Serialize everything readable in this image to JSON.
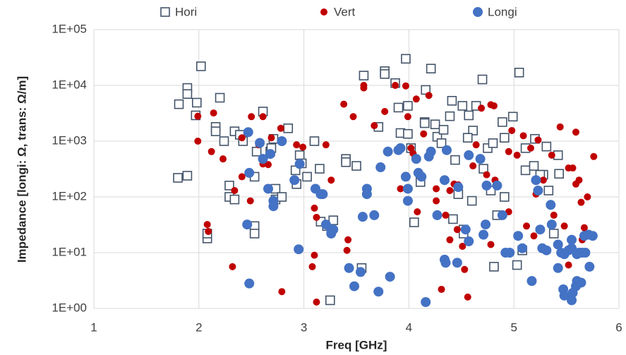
{
  "chart_data": {
    "type": "scatter",
    "xlabel": "Freq [GHz]",
    "ylabel": "Impedance [longi: Ω, trans: Ω/m]",
    "xlim": [
      1,
      6
    ],
    "xticks": [
      1,
      2,
      3,
      4,
      5,
      6
    ],
    "ylim": [
      1,
      100000
    ],
    "log_y": true,
    "yticks": [
      {
        "value": 1,
        "label": "1E+00"
      },
      {
        "value": 10,
        "label": "1E+01"
      },
      {
        "value": 100,
        "label": "1E+02"
      },
      {
        "value": 1000,
        "label": "1E+03"
      },
      {
        "value": 10000,
        "label": "1E+04"
      },
      {
        "value": 100000,
        "label": "1E+05"
      }
    ],
    "grid": true,
    "legend": "top",
    "series": [
      {
        "name": "Hori",
        "color": "#44546a",
        "marker": "square",
        "x": [
          1.81,
          1.89,
          1.89,
          2.02,
          1.98,
          1.97,
          2.16,
          2.16,
          2.2,
          2.24,
          2.34,
          2.39,
          2.29,
          2.29,
          2.34,
          2.42,
          1.8,
          1.89,
          2.08,
          2.08,
          2.53,
          2.53,
          2.53,
          2.55,
          2.68,
          2.69,
          2.71,
          2.61,
          2.85,
          2.73,
          2.73,
          2.79,
          2.92,
          2.93,
          2.96,
          2.98,
          3.03,
          3.1,
          3.15,
          3.16,
          3.22,
          3.25,
          3.28,
          3.4,
          3.4,
          3.5,
          3.57,
          3.55,
          3.77,
          3.77,
          3.71,
          3.87,
          3.9,
          3.92,
          3.97,
          3.99,
          3.99,
          4.02,
          4.05,
          4.16,
          4.15,
          4.15,
          4.11,
          4.21,
          4.25,
          4.27,
          4.31,
          4.33,
          4.39,
          4.41,
          4.44,
          4.42,
          4.47,
          4.51,
          4.52,
          4.52,
          4.57,
          4.61,
          4.56,
          4.6,
          4.7,
          4.71,
          4.75,
          4.64,
          4.8,
          4.78,
          4.84,
          4.89,
          4.91,
          4.91,
          4.99,
          5.03,
          5.08,
          5.05,
          5.11,
          5.11,
          5.19,
          5.2,
          5.28,
          5.31,
          5.33,
          5.25,
          5.38,
          5.42,
          5.43,
          4.81
        ],
        "values": [
          4600,
          9000,
          7000,
          22000,
          4900,
          2900,
          1800,
          1500,
          6000,
          1000,
          1500,
          1300,
          160,
          100,
          90,
          1000,
          220,
          240,
          18,
          22,
          30,
          22,
          230,
          650,
          650,
          750,
          1100,
          3400,
          1700,
          140,
          90,
          100,
          300,
          170,
          560,
          400,
          230,
          1000,
          320,
          36,
          30,
          1.4,
          38,
          480,
          420,
          360,
          15000,
          5.3,
          18000,
          16000,
          1800,
          11000,
          4000,
          1400,
          30000,
          4300,
          1350,
          750,
          35,
          8300,
          2200,
          2100,
          185,
          20000,
          2000,
          1200,
          920,
          1600,
          2800,
          5300,
          460,
          40,
          112,
          4300,
          26,
          22,
          2900,
          1550,
          1150,
          85,
          12800,
          320,
          750,
          4300,
          920,
          130,
          47,
          2200,
          1150,
          100,
          2750,
          6,
          11,
          17000,
          750,
          300,
          360,
          1100,
          250,
          800,
          130,
          250,
          22,
          560,
          260,
          5.6
        ]
      },
      {
        "name": "Vert",
        "color": "#c00000",
        "marker": "circle",
        "x": [
          1.99,
          1.99,
          2.08,
          2.09,
          2.12,
          2.14,
          2.23,
          2.32,
          2.34,
          2.41,
          2.41,
          2.5,
          2.49,
          2.57,
          2.61,
          2.61,
          2.66,
          2.69,
          2.78,
          2.79,
          2.93,
          2.99,
          3.1,
          3.08,
          3.1,
          3.12,
          3.12,
          3.21,
          3.26,
          3.38,
          3.42,
          3.41,
          3.47,
          3.57,
          3.57,
          3.67,
          3.77,
          3.87,
          3.92,
          3.97,
          3.99,
          4.02,
          4.04,
          4.07,
          4.08,
          4.14,
          4.19,
          4.26,
          4.26,
          4.31,
          4.35,
          4.39,
          4.39,
          4.43,
          4.46,
          4.47,
          4.51,
          4.53,
          4.56,
          4.61,
          4.64,
          4.69,
          4.74,
          4.78,
          4.81,
          4.82,
          4.78,
          4.95,
          4.95,
          4.98,
          5.03,
          5.09,
          5.12,
          5.19,
          5.21,
          5.16,
          5.23,
          5.28,
          5.36,
          5.38,
          5.44,
          5.45,
          5.48,
          5.52,
          5.52,
          5.56,
          5.59,
          5.62,
          5.64,
          5.67,
          5.7,
          5.65,
          5.76,
          5.59
        ],
        "values": [
          2800,
          1000,
          32,
          24,
          650,
          3200,
          480,
          5.6,
          130,
          230,
          1150,
          2750,
          85,
          860,
          390,
          2750,
          380,
          1150,
          1700,
          2,
          860,
          780,
          9,
          5.6,
          63,
          43,
          1.3,
          860,
          200,
          4600,
          17,
          11,
          2750,
          9000,
          10000,
          1900,
          3400,
          10000,
          140,
          9800,
          2750,
          750,
          600,
          5700,
          54,
          1350,
          6600,
          140,
          85,
          2.2,
          47,
          17,
          130,
          170,
          26,
          165,
          13,
          5,
          1.6,
          360,
          860,
          3900,
          250,
          4500,
          4300,
          200,
          14,
          54,
          650,
          1550,
          560,
          1250,
          30,
          20,
          112,
          750,
          1050,
          200,
          560,
          47,
          1800,
          9.4,
          30,
          6,
          330,
          330,
          1450,
          200,
          80,
          28,
          100,
          17,
          530,
          170
        ]
      },
      {
        "name": "Longi",
        "color": "#4472c4",
        "marker": "circle-large",
        "x": [
          2.47,
          2.48,
          2.46,
          2.48,
          2.58,
          2.61,
          2.66,
          2.68,
          2.71,
          2.71,
          2.79,
          2.95,
          2.91,
          2.96,
          3.11,
          3.16,
          3.18,
          3.21,
          3.26,
          3.28,
          3.26,
          3.43,
          3.48,
          3.54,
          3.56,
          3.6,
          3.6,
          3.67,
          3.73,
          3.71,
          3.8,
          3.82,
          3.9,
          3.92,
          3.97,
          3.99,
          3.99,
          4.07,
          4.09,
          4.12,
          4.16,
          4.19,
          4.21,
          4.27,
          4.34,
          4.35,
          4.34,
          4.36,
          4.46,
          4.47,
          4.54,
          4.57,
          4.57,
          4.68,
          4.74,
          4.73,
          4.71,
          4.84,
          4.89,
          4.92,
          4.96,
          5.04,
          5.08,
          5.17,
          5.21,
          5.23,
          5.25,
          5.27,
          5.31,
          5.35,
          5.36,
          5.42,
          5.45,
          5.48,
          5.52,
          5.55,
          5.42,
          5.47,
          5.48,
          5.55,
          5.56,
          5.59,
          5.6,
          5.64,
          5.6,
          5.65,
          5.68,
          5.67,
          5.71,
          5.75,
          5.72,
          5.55,
          5.62
        ],
        "values": [
          1450,
          270,
          32,
          2.8,
          930,
          480,
          140,
          590,
          85,
          68,
          1000,
          11.5,
          200,
          390,
          140,
          112,
          112,
          32,
          22,
          26,
          26,
          5.3,
          2.5,
          4.5,
          44,
          140,
          112,
          47,
          340,
          2,
          650,
          3.7,
          690,
          750,
          230,
          140,
          85,
          480,
          270,
          230,
          1.3,
          530,
          650,
          47,
          7.5,
          6.6,
          200,
          690,
          6.6,
          150,
          26,
          560,
          16,
          480,
          160,
          32,
          21,
          160,
          47,
          10,
          10,
          20,
          12,
          3.1,
          200,
          130,
          26,
          12,
          11,
          72,
          32,
          14,
          10,
          9.4,
          11,
          12,
          5.3,
          2.2,
          1.7,
          1.4,
          1.9,
          2.5,
          3.1,
          2.9,
          9.4,
          10,
          10,
          20,
          21,
          20,
          5.6,
          17,
          10
        ]
      }
    ]
  }
}
